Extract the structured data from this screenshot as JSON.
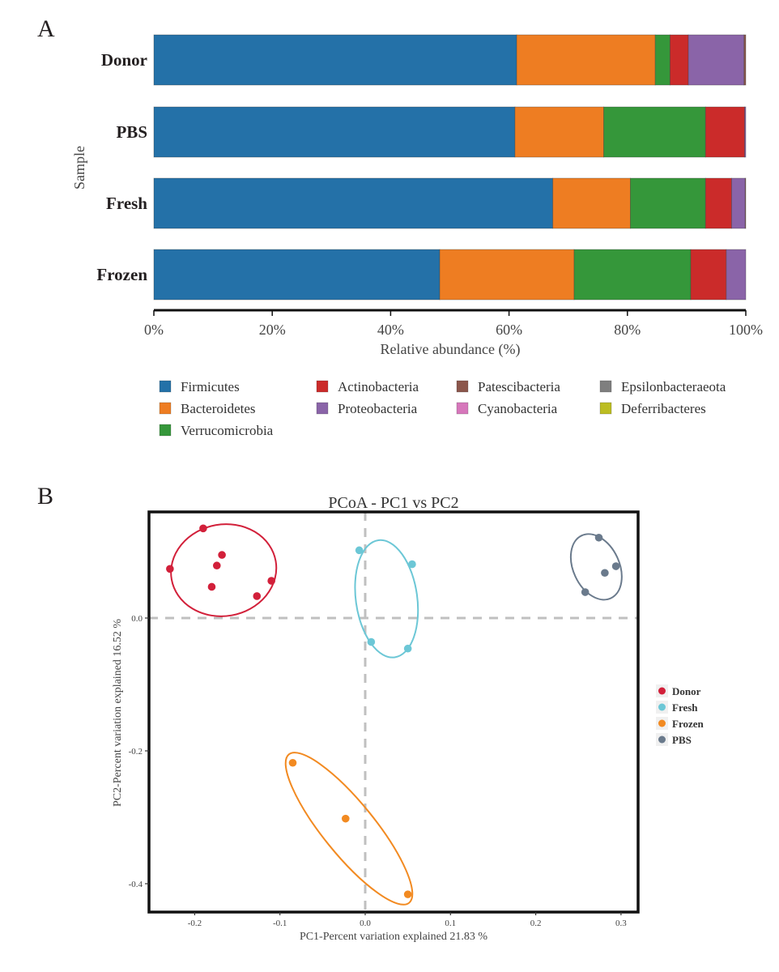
{
  "panels": {
    "a_letter": "A",
    "b_letter": "B"
  },
  "chart_data": [
    {
      "type": "bar",
      "orientation": "horizontal",
      "stacked": true,
      "title": "",
      "xlabel": "Relative abundance (%)",
      "ylabel": "Sample",
      "xlim": [
        0,
        100
      ],
      "xticks": [
        "0%",
        "20%",
        "40%",
        "60%",
        "80%",
        "100%"
      ],
      "categories": [
        "Donor",
        "PBS",
        "Fresh",
        "Frozen"
      ],
      "series": [
        {
          "name": "Firmicutes",
          "color": "#2471a8",
          "values": [
            61.3,
            61.0,
            67.4,
            48.3
          ]
        },
        {
          "name": "Bacteroidetes",
          "color": "#ee7d22",
          "values": [
            23.4,
            15.0,
            13.1,
            22.7
          ]
        },
        {
          "name": "Verrucomicrobia",
          "color": "#35973a",
          "values": [
            2.5,
            17.2,
            12.7,
            19.7
          ]
        },
        {
          "name": "Actinobacteria",
          "color": "#cb2b2a",
          "values": [
            3.1,
            6.6,
            4.4,
            6.0
          ]
        },
        {
          "name": "Proteobacteria",
          "color": "#8a64a8",
          "values": [
            9.4,
            0.2,
            2.3,
            3.3
          ]
        },
        {
          "name": "Patescibacteria",
          "color": "#8b564b",
          "values": [
            0.3,
            0.0,
            0.1,
            0.0
          ]
        },
        {
          "name": "Cyanobacteria",
          "color": "#d677bb",
          "values": [
            0.0,
            0.0,
            0.0,
            0.0
          ]
        },
        {
          "name": "Epsilonbacteraeota",
          "color": "#7f7f7f",
          "values": [
            0.0,
            0.0,
            0.0,
            0.0
          ]
        },
        {
          "name": "Deferribacteres",
          "color": "#bcbd22",
          "values": [
            0.0,
            0.0,
            0.0,
            0.0
          ]
        }
      ],
      "legend": {
        "placement": "bottom",
        "columns": [
          [
            "Firmicutes",
            "Bacteroidetes",
            "Verrucomicrobia"
          ],
          [
            "Actinobacteria",
            "Proteobacteria"
          ],
          [
            "Patescibacteria",
            "Cyanobacteria"
          ],
          [
            "Epsilonbacteraeota",
            "Deferribacteres"
          ]
        ]
      }
    },
    {
      "type": "scatter",
      "title": "PCoA - PC1 vs PC2",
      "xlabel": "PC1-Percent variation explained 21.83 %",
      "ylabel": "PC2-Percent variation explained 16.52 %",
      "xlim": [
        -0.255,
        0.322
      ],
      "ylim": [
        -0.445,
        0.16
      ],
      "xticks": [
        -0.2,
        -0.1,
        0.0,
        0.1,
        0.2,
        0.3
      ],
      "xtick_labels": [
        "-0.2",
        "-0.1",
        "0.0",
        "0.1",
        "0.2",
        "0.3"
      ],
      "yticks": [
        0.0,
        -0.2,
        -0.4
      ],
      "ytick_labels": [
        "0.0",
        "-0.2",
        "-0.4"
      ],
      "reference_lines": {
        "x": 0.0,
        "y": 0.0,
        "style": "dashed",
        "color": "#c0c0c0"
      },
      "legend": {
        "placement": "right"
      },
      "groups": [
        {
          "name": "Donor",
          "color": "#d2203a",
          "points": [
            [
              -0.19,
              0.135
            ],
            [
              -0.229,
              0.074
            ],
            [
              -0.168,
              0.095
            ],
            [
              -0.174,
              0.079
            ],
            [
              -0.18,
              0.047
            ],
            [
              -0.11,
              0.056
            ],
            [
              -0.127,
              0.033
            ]
          ],
          "ellipse": {
            "cx": -0.166,
            "cy": 0.072,
            "rx": 0.062,
            "ry": 0.069,
            "angle_deg": -10
          }
        },
        {
          "name": "Fresh",
          "color": "#6cc7d6",
          "points": [
            [
              -0.007,
              0.102
            ],
            [
              0.055,
              0.081
            ],
            [
              0.007,
              -0.036
            ],
            [
              0.05,
              -0.046
            ]
          ],
          "ellipse": {
            "cx": 0.025,
            "cy": 0.029,
            "rx": 0.036,
            "ry": 0.089,
            "angle_deg": -8
          }
        },
        {
          "name": "Frozen",
          "color": "#f28a21",
          "points": [
            [
              -0.085,
              -0.218
            ],
            [
              -0.023,
              -0.302
            ],
            [
              0.05,
              -0.416
            ]
          ],
          "ellipse": {
            "cx": -0.019,
            "cy": -0.317,
            "rx": 0.112,
            "ry": 0.039,
            "angle_deg": 51
          }
        },
        {
          "name": "PBS",
          "color": "#6a7a8c",
          "points": [
            [
              0.274,
              0.121
            ],
            [
              0.294,
              0.078
            ],
            [
              0.281,
              0.068
            ],
            [
              0.258,
              0.039
            ]
          ],
          "ellipse": {
            "cx": 0.271,
            "cy": 0.077,
            "rx": 0.027,
            "ry": 0.052,
            "angle_deg": -25
          }
        }
      ]
    }
  ]
}
